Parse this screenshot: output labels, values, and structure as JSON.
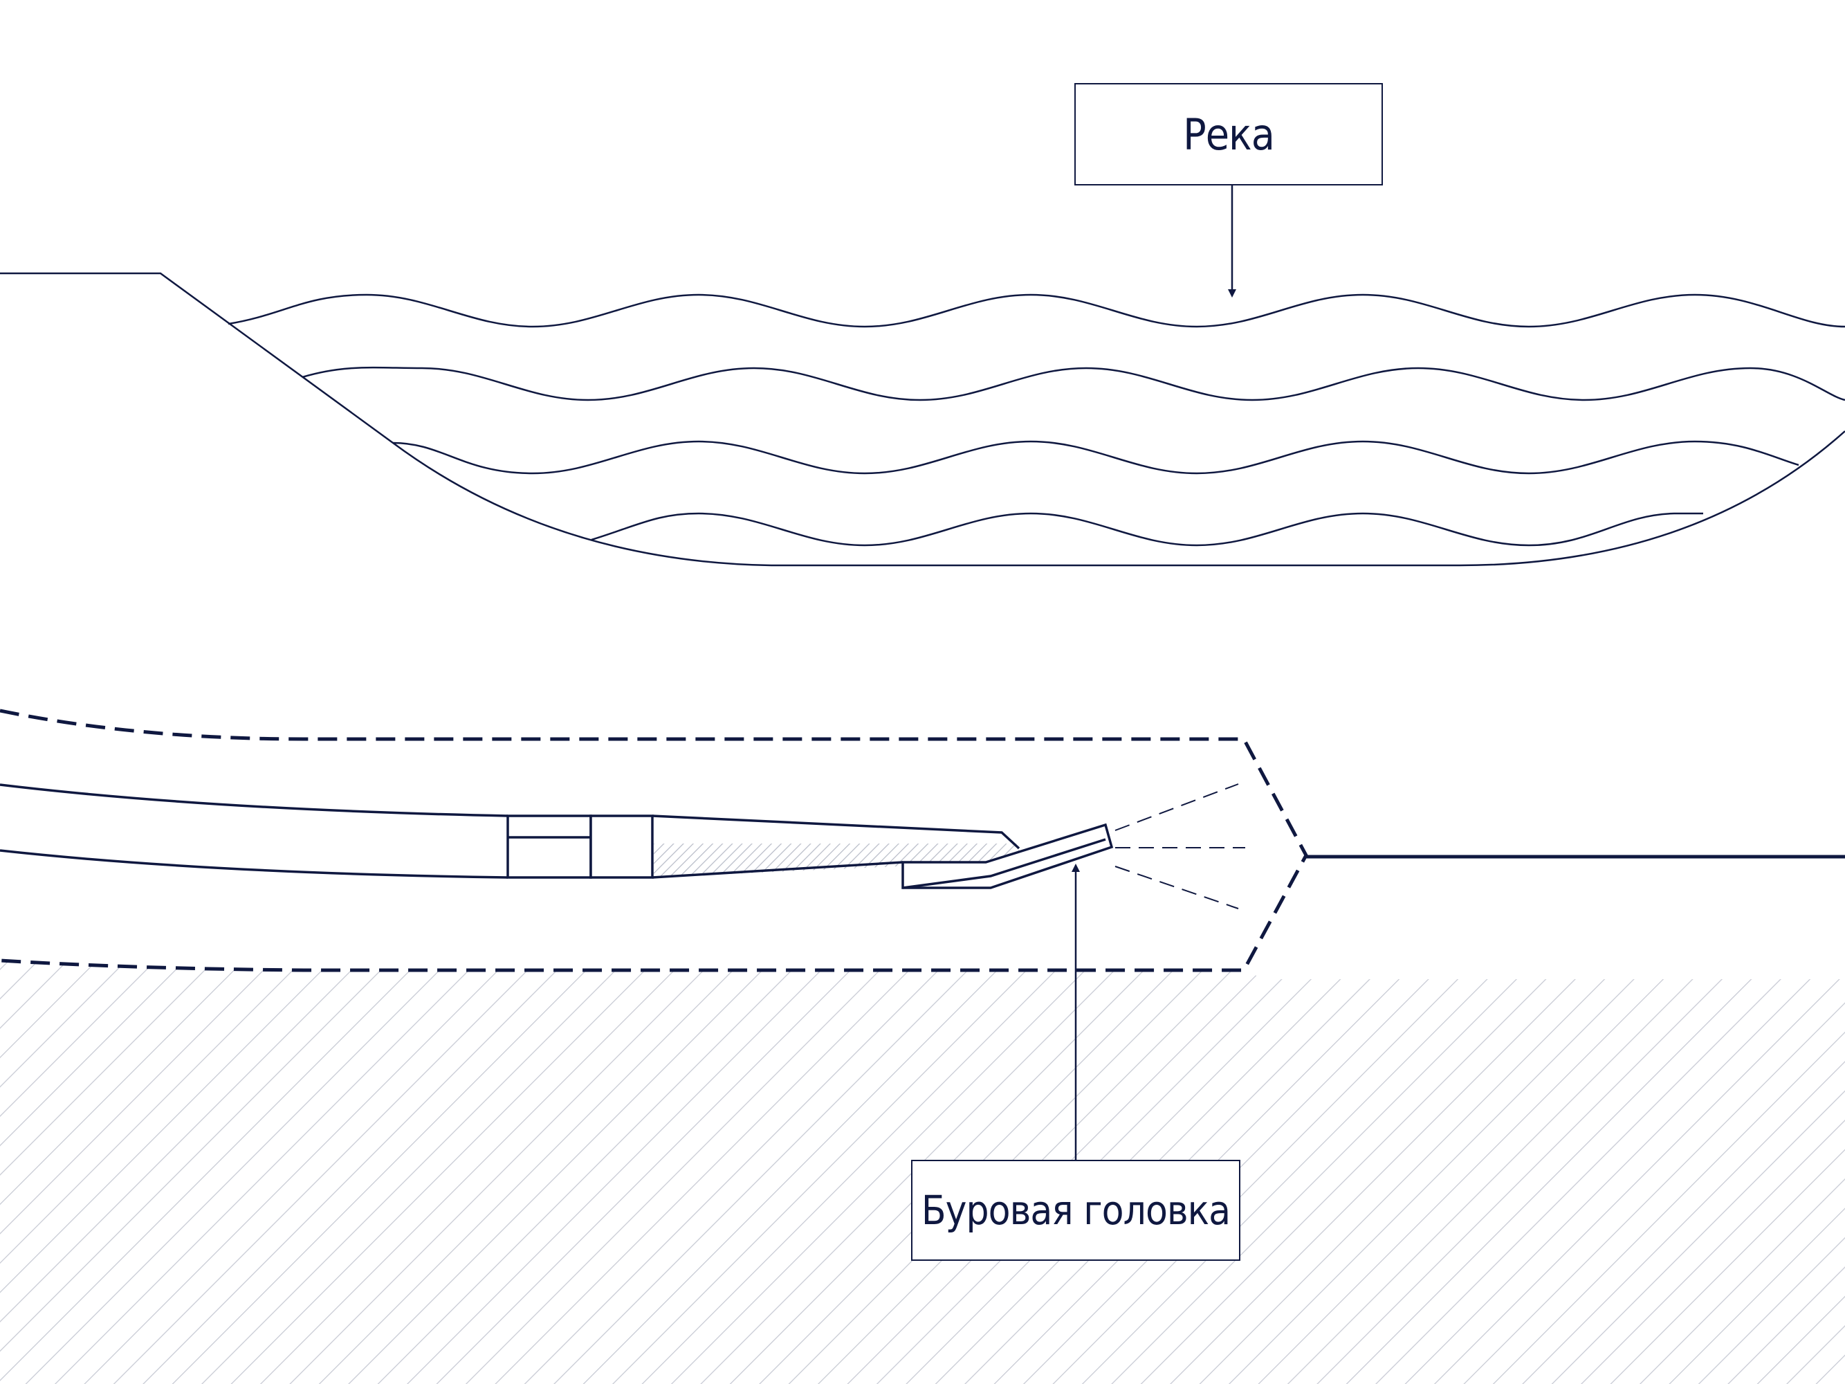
{
  "labels": {
    "river": "Река",
    "drill_head": "Буровая головка"
  },
  "colors": {
    "ink": "#0f1840",
    "hatch": "#c6c9d3",
    "background": "#ffffff"
  }
}
